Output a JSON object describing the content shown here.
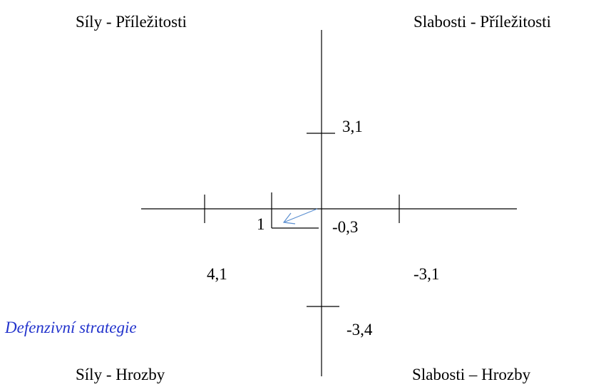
{
  "quadrants": {
    "top_left": "Síly - Příležitosti",
    "top_right": "Slabosti - Příležitosti",
    "bottom_left": "Síly - Hrozby",
    "bottom_right": "Slabosti – Hrozby"
  },
  "labels": {
    "top": "3,1",
    "left_inner": "1",
    "center": "-0,3",
    "left": "4,1",
    "right": "-3,1",
    "bottom": "-3,4"
  },
  "annotation": "Defenzivní strategie"
}
